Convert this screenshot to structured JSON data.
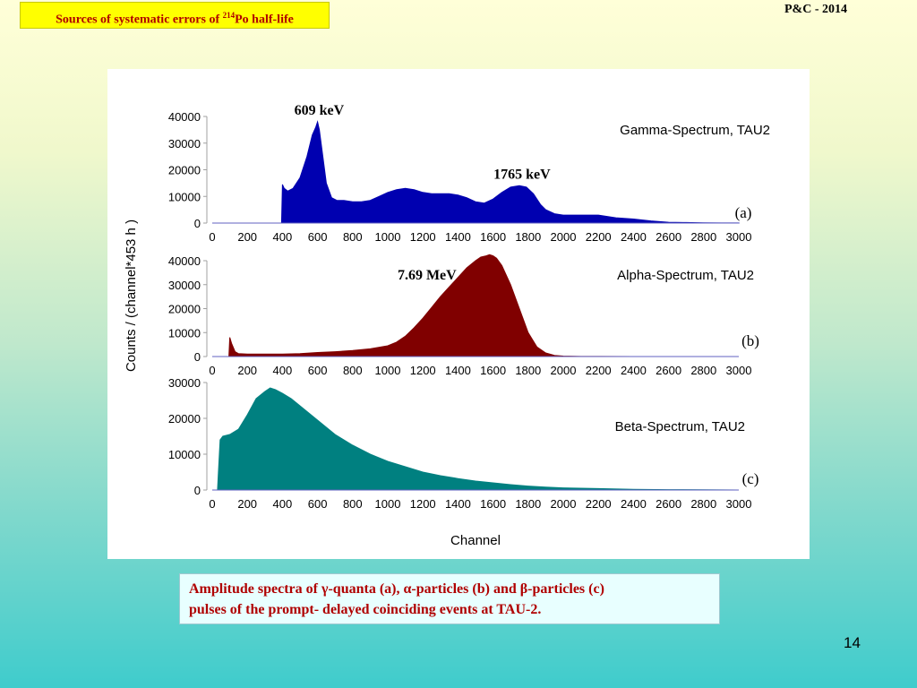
{
  "slide": {
    "title_prefix": "Sources of systematic errors of ",
    "title_sup": "214",
    "title_suffix": "Po half-life",
    "header_right": "P&C - 2014",
    "caption_line1": "Amplitude spectra of γ-quanta (a), α-particles (b) and β-particles (c)",
    "caption_line2": "pulses  of  the prompt- delayed coinciding events at TAU-2.",
    "page_number": "14",
    "shared_ylabel": "Counts / (channel*453 h )"
  },
  "chart_data": [
    {
      "type": "area",
      "title": "Gamma-Spectrum, TAU2",
      "panel_label": "(a)",
      "color": "#0000b0",
      "xlabel": "",
      "xlim": [
        0,
        3000
      ],
      "ylim": [
        0,
        40000
      ],
      "yticks": [
        0,
        10000,
        20000,
        30000,
        40000
      ],
      "xticks": [
        0,
        200,
        400,
        600,
        800,
        1000,
        1200,
        1400,
        1600,
        1800,
        2000,
        2200,
        2400,
        2600,
        2800,
        3000
      ],
      "annotations": [
        {
          "text": "609 keV",
          "x": 609,
          "y": 38000
        },
        {
          "text": "1765 keV",
          "x": 1765,
          "y": 14000
        }
      ],
      "x": [
        0,
        395,
        400,
        410,
        430,
        460,
        500,
        540,
        570,
        590,
        600,
        610,
        630,
        650,
        680,
        710,
        750,
        800,
        850,
        900,
        950,
        1000,
        1050,
        1100,
        1150,
        1200,
        1250,
        1300,
        1350,
        1400,
        1450,
        1500,
        1550,
        1600,
        1650,
        1700,
        1750,
        1790,
        1830,
        1870,
        1900,
        1950,
        2000,
        2050,
        2100,
        2150,
        2200,
        2250,
        2300,
        2400,
        2500,
        2600,
        2700,
        2800,
        2900,
        3000
      ],
      "y": [
        0,
        0,
        14500,
        13000,
        12000,
        13000,
        17000,
        25000,
        33000,
        36000,
        38000,
        35000,
        25000,
        15000,
        9500,
        8500,
        8500,
        8000,
        8000,
        8500,
        10000,
        11500,
        12500,
        13000,
        12500,
        11500,
        11000,
        11000,
        11000,
        10500,
        9500,
        8000,
        7500,
        9000,
        11500,
        13500,
        14000,
        13500,
        11000,
        7000,
        5000,
        3500,
        3000,
        3000,
        3000,
        3000,
        3000,
        2500,
        2000,
        1500,
        800,
        300,
        200,
        100,
        50,
        20
      ]
    },
    {
      "type": "area",
      "title": "Alpha-Spectrum, TAU2",
      "panel_label": "(b)",
      "color": "#800000",
      "xlabel": "",
      "xlim": [
        0,
        3000
      ],
      "ylim": [
        0,
        40000
      ],
      "yticks": [
        0,
        10000,
        20000,
        30000,
        40000
      ],
      "xticks": [
        0,
        200,
        400,
        600,
        800,
        1000,
        1200,
        1400,
        1600,
        1800,
        2000,
        2200,
        2400,
        2600,
        2800,
        3000
      ],
      "annotations": [
        {
          "text": "7.69 MeV",
          "x": 1570,
          "y": 43000
        }
      ],
      "x": [
        0,
        95,
        100,
        110,
        130,
        150,
        200,
        300,
        400,
        500,
        600,
        700,
        800,
        900,
        1000,
        1050,
        1100,
        1150,
        1200,
        1250,
        1300,
        1350,
        1400,
        1450,
        1500,
        1530,
        1560,
        1580,
        1600,
        1620,
        1650,
        1700,
        1750,
        1800,
        1850,
        1900,
        1950,
        2000,
        2100,
        2200,
        2400,
        3000
      ],
      "y": [
        0,
        0,
        8000,
        5500,
        2000,
        1200,
        1000,
        1000,
        1000,
        1200,
        1700,
        2000,
        2500,
        3200,
        4500,
        6000,
        8500,
        12000,
        16000,
        20500,
        25000,
        29000,
        33000,
        37000,
        40000,
        41500,
        42000,
        42500,
        42000,
        41000,
        38000,
        30000,
        20000,
        10000,
        4000,
        1500,
        500,
        200,
        50,
        20,
        0,
        0
      ]
    },
    {
      "type": "area",
      "title": "Beta-Spectrum, TAU2",
      "panel_label": "(c)",
      "color": "#008080",
      "xlabel": "Channel",
      "xlim": [
        0,
        3000
      ],
      "ylim": [
        0,
        30000
      ],
      "yticks": [
        0,
        10000,
        20000,
        30000
      ],
      "xticks": [
        0,
        200,
        400,
        600,
        800,
        1000,
        1200,
        1400,
        1600,
        1800,
        2000,
        2200,
        2400,
        2600,
        2800,
        3000
      ],
      "annotations": [],
      "x": [
        0,
        30,
        35,
        45,
        60,
        100,
        150,
        200,
        250,
        300,
        330,
        360,
        400,
        450,
        500,
        550,
        600,
        700,
        800,
        900,
        1000,
        1100,
        1200,
        1300,
        1400,
        1500,
        1600,
        1700,
        1800,
        1900,
        2000,
        2200,
        2400,
        2600,
        2800,
        3000
      ],
      "y": [
        0,
        0,
        5000,
        14000,
        15000,
        15500,
        17000,
        21000,
        25500,
        27500,
        28500,
        28000,
        27000,
        25500,
        23500,
        21500,
        19500,
        15500,
        12500,
        10000,
        8000,
        6500,
        5000,
        4000,
        3200,
        2500,
        2000,
        1500,
        1100,
        800,
        600,
        400,
        200,
        100,
        50,
        0
      ]
    }
  ]
}
